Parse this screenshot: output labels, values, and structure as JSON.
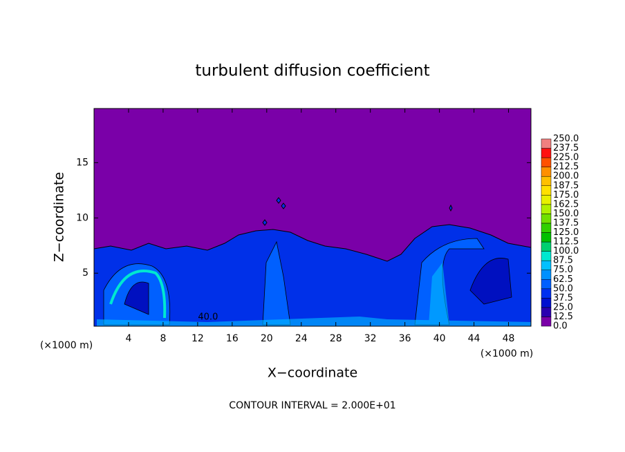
{
  "chart_data": {
    "type": "contour",
    "title": "turbulent diffusion coefficient",
    "xlabel": "X−coordinate",
    "ylabel": "Z−coordinate",
    "x_unit_label": "(×1000 m)",
    "y_unit_label": "(×1000 m)",
    "xlim": [
      0,
      50.6
    ],
    "ylim": [
      0.2,
      19.9
    ],
    "xticks": [
      4,
      8,
      12,
      16,
      20,
      24,
      28,
      32,
      36,
      40,
      44,
      48
    ],
    "yticks": [
      5,
      10,
      15
    ],
    "levels": [
      {
        "value": 0,
        "label": "0.0"
      },
      {
        "value": 12.5,
        "label": "12.5"
      },
      {
        "value": 25,
        "label": "25.0"
      },
      {
        "value": 37.5,
        "label": "37.5"
      },
      {
        "value": 50,
        "label": "50.0"
      },
      {
        "value": 62.5,
        "label": "62.5"
      },
      {
        "value": 75,
        "label": "75.0"
      },
      {
        "value": 87.5,
        "label": "87.5"
      },
      {
        "value": 100,
        "label": "100.0"
      },
      {
        "value": 112.5,
        "label": "112.5"
      },
      {
        "value": 125,
        "label": "125.0"
      },
      {
        "value": 137.5,
        "label": "137.5"
      },
      {
        "value": 150,
        "label": "150.0"
      },
      {
        "value": 162.5,
        "label": "162.5"
      },
      {
        "value": 175,
        "label": "175.0"
      },
      {
        "value": 187.5,
        "label": "187.5"
      },
      {
        "value": 200,
        "label": "200.0"
      },
      {
        "value": 212.5,
        "label": "212.5"
      },
      {
        "value": 225,
        "label": "225.0"
      },
      {
        "value": 237.5,
        "label": "237.5"
      },
      {
        "value": 250,
        "label": "250.0"
      }
    ],
    "colors": [
      "#7a00a8",
      "#2a00b0",
      "#0010d0",
      "#0030f0",
      "#0060ff",
      "#0090ff",
      "#00c0ff",
      "#00e8d0",
      "#00d070",
      "#00c000",
      "#30d000",
      "#70e000",
      "#b0f000",
      "#e8f000",
      "#ffe000",
      "#ffc000",
      "#ff9000",
      "#ff5000",
      "#ff1010",
      "#f08080"
    ],
    "contour_labels": [
      {
        "x": 13.2,
        "y": 1.0,
        "label": "40.0"
      }
    ],
    "contour_interval_note": "CONTOUR INTERVAL = 2.000E+01"
  }
}
